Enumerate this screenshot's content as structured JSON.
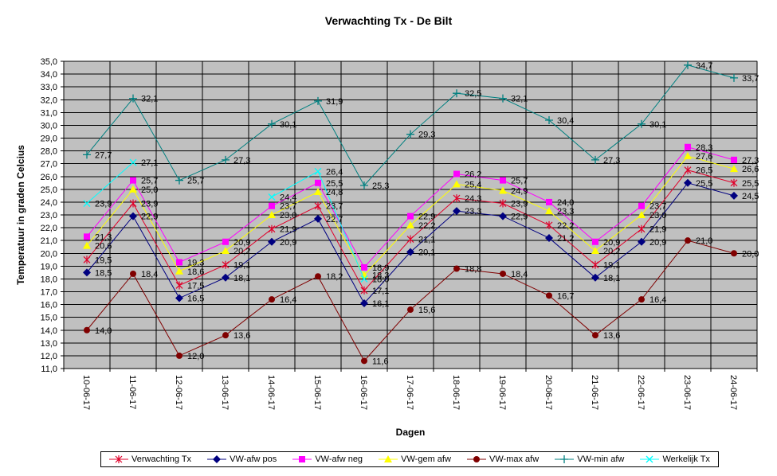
{
  "chart_data": {
    "type": "line",
    "title": "Verwachting Tx - De Bilt",
    "xlabel": "Dagen",
    "ylabel": "Temperatuur in graden Celcius",
    "ylim": [
      11.0,
      35.0
    ],
    "ystep": 1.0,
    "grid": true,
    "legend_position": "bottom",
    "categories": [
      "10-06-17",
      "11-06-17",
      "12-06-17",
      "13-06-17",
      "14-06-17",
      "15-06-17",
      "16-06-17",
      "17-06-17",
      "18-06-17",
      "19-06-17",
      "20-06-17",
      "21-06-17",
      "22-06-17",
      "23-06-17",
      "24-06-17"
    ],
    "series": [
      {
        "name": "Verwachting Tx",
        "color": "#e0002a",
        "marker": "star",
        "values": [
          19.5,
          23.9,
          17.5,
          19.1,
          21.9,
          23.7,
          17.1,
          21.1,
          24.3,
          23.9,
          22.2,
          19.1,
          21.9,
          26.5,
          25.5
        ],
        "labels": [
          "19,5",
          "23,9",
          "17,5",
          "19,1",
          "21,9",
          "23,7",
          "17,1",
          "21,1",
          "24,3",
          "23,9",
          "22,2",
          "19,1",
          "21,9",
          "26,5",
          "25,5"
        ]
      },
      {
        "name": "VW-afw pos",
        "color": "#000080",
        "marker": "diamond",
        "values": [
          18.5,
          22.9,
          16.5,
          18.1,
          20.9,
          22.7,
          16.1,
          20.1,
          23.3,
          22.9,
          21.2,
          18.1,
          20.9,
          25.5,
          24.5
        ],
        "labels": [
          "18,5",
          "22,9",
          "16,5",
          "18,1",
          "20,9",
          "22,7",
          "16,1",
          "20,1",
          "23,3",
          "22,9",
          "21,2",
          "18,1",
          "20,9",
          "25,5",
          "24,5"
        ]
      },
      {
        "name": "VW-afw neg",
        "color": "#ff00ff",
        "marker": "square",
        "values": [
          21.3,
          25.7,
          19.3,
          20.9,
          23.7,
          25.5,
          18.9,
          22.9,
          26.2,
          25.7,
          24.0,
          20.9,
          23.7,
          28.3,
          27.3
        ],
        "labels": [
          "21,3",
          "25,7",
          "19,3",
          "20,9",
          "23,7",
          "25,5",
          "18,9",
          "22,9",
          "26,2",
          "25,7",
          "24,0",
          "20,9",
          "23,7",
          "28,3",
          "27,3"
        ]
      },
      {
        "name": "VW-gem afw",
        "color": "#ffff00",
        "marker": "triangle",
        "values": [
          20.6,
          25.0,
          18.6,
          20.2,
          23.0,
          24.8,
          18.3,
          22.2,
          25.4,
          24.9,
          23.3,
          20.2,
          23.0,
          27.6,
          26.6
        ],
        "labels": [
          "20,6",
          "25,0",
          "18,6",
          "20,2",
          "23,0",
          "24,8",
          "18,3",
          "22,2",
          "25,4",
          "24,9",
          "23,3",
          "20,2",
          "23,0",
          "27,6",
          "26,6"
        ]
      },
      {
        "name": "VW-max afw",
        "color": "#800000",
        "marker": "circle",
        "values": [
          14.0,
          18.4,
          12.0,
          13.6,
          16.4,
          18.2,
          11.6,
          15.6,
          18.8,
          18.4,
          16.7,
          13.6,
          16.4,
          21.0,
          20.0
        ],
        "labels": [
          "14,0",
          "18,4",
          "12,0",
          "13,6",
          "16,4",
          "18,2",
          "11,6",
          "15,6",
          "18,8",
          "18,4",
          "16,7",
          "13,6",
          "16,4",
          "21,0",
          "20,0"
        ]
      },
      {
        "name": "VW-min afw",
        "color": "#008080",
        "marker": "plus",
        "values": [
          27.7,
          32.1,
          25.7,
          27.3,
          30.1,
          31.9,
          25.3,
          29.3,
          32.5,
          32.1,
          30.4,
          27.3,
          30.1,
          34.7,
          33.7
        ],
        "labels": [
          "27,7",
          "32,1",
          "25,7",
          "27,3",
          "30,1",
          "31,9",
          "25,3",
          "29,3",
          "32,5",
          "32,1",
          "30,4",
          "27,3",
          "30,1",
          "34,7",
          "33,7"
        ]
      },
      {
        "name": "Werkelijk Tx",
        "color": "#00ffff",
        "marker": "x",
        "values": [
          23.9,
          27.1,
          null,
          null,
          24.4,
          26.4,
          18.0,
          null,
          null,
          null,
          null,
          null,
          null,
          null,
          null
        ],
        "labels": [
          "23,9",
          "27,1",
          "",
          "",
          "24,4",
          "26,4",
          "18,0",
          "",
          "",
          "",
          "",
          "",
          "",
          "",
          ""
        ]
      }
    ]
  }
}
